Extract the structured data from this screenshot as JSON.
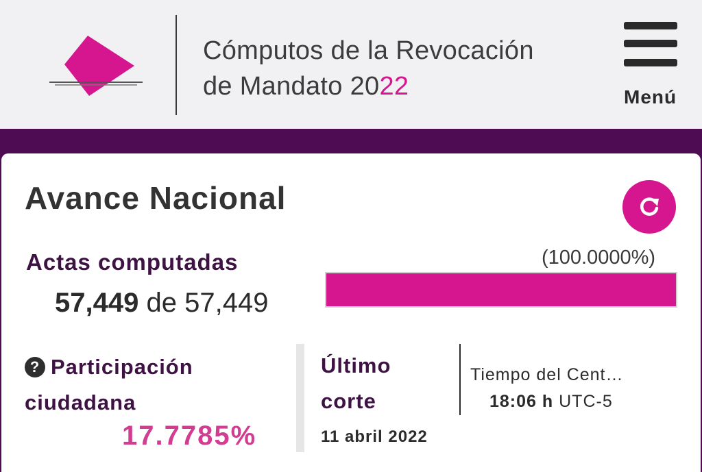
{
  "header": {
    "title_line1": "Cómputos de la Revocación",
    "title_line2_prefix": "de Mandato 20",
    "title_line2_accent": "22",
    "menu_label": "Menú"
  },
  "avance": {
    "title": "Avance Nacional",
    "actas_label": "Actas computadas",
    "actas_computed": "57,449",
    "actas_connector": "de",
    "actas_total": "57,449",
    "progress_text": "(100.0000%)",
    "progress_fraction": 1.0
  },
  "participacion": {
    "label_line1": "Participación",
    "label_line2": "ciudadana",
    "value": "17.7785%"
  },
  "ultimo_corte": {
    "label_line1": "Último",
    "label_line2": "corte",
    "date": "11 abril 2022",
    "tiempo_label": "Tiempo del Cent…",
    "time": "18:06 h",
    "timezone": "UTC-5"
  },
  "colors": {
    "accent": "#d5168f",
    "band": "#4e0d52",
    "label": "#3e1344"
  },
  "icons": {
    "logo": "ballot-box-logo-icon",
    "menu": "hamburger-menu-icon",
    "refresh": "refresh-icon",
    "help": "question-circle-icon"
  }
}
